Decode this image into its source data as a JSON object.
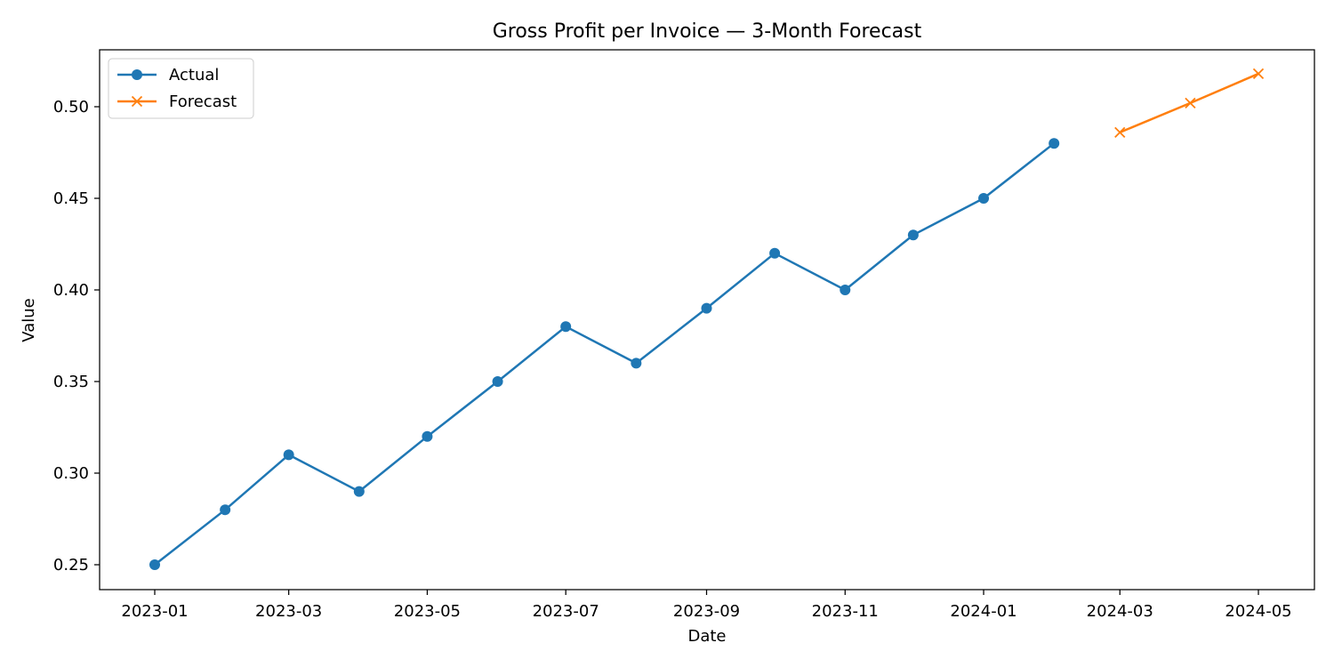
{
  "chart_data": {
    "type": "line",
    "title": "Gross Profit per Invoice — 3-Month Forecast",
    "xlabel": "Date",
    "ylabel": "Value",
    "x_tick_labels": [
      "2023-01",
      "2023-03",
      "2023-05",
      "2023-07",
      "2023-09",
      "2023-11",
      "2024-01",
      "2024-03",
      "2024-05"
    ],
    "y_tick_labels": [
      "0.25",
      "0.30",
      "0.35",
      "0.40",
      "0.45",
      "0.50"
    ],
    "ylim": [
      0.235,
      0.528
    ],
    "grid": false,
    "legend_position": "upper-left",
    "series": [
      {
        "name": "Actual",
        "color": "#1f77b4",
        "marker": "circle",
        "points": [
          {
            "x": "2023-01-01",
            "y": 0.25
          },
          {
            "x": "2023-02-01",
            "y": 0.28
          },
          {
            "x": "2023-03-01",
            "y": 0.31
          },
          {
            "x": "2023-04-01",
            "y": 0.29
          },
          {
            "x": "2023-05-01",
            "y": 0.32
          },
          {
            "x": "2023-06-01",
            "y": 0.35
          },
          {
            "x": "2023-07-01",
            "y": 0.38
          },
          {
            "x": "2023-08-01",
            "y": 0.36
          },
          {
            "x": "2023-09-01",
            "y": 0.39
          },
          {
            "x": "2023-10-01",
            "y": 0.42
          },
          {
            "x": "2023-11-01",
            "y": 0.4
          },
          {
            "x": "2023-12-01",
            "y": 0.43
          },
          {
            "x": "2024-01-01",
            "y": 0.45
          },
          {
            "x": "2024-02-01",
            "y": 0.48
          }
        ]
      },
      {
        "name": "Forecast",
        "color": "#ff7f0e",
        "marker": "x",
        "points": [
          {
            "x": "2024-03-01",
            "y": 0.486
          },
          {
            "x": "2024-04-01",
            "y": 0.502
          },
          {
            "x": "2024-05-01",
            "y": 0.518
          }
        ]
      }
    ]
  }
}
